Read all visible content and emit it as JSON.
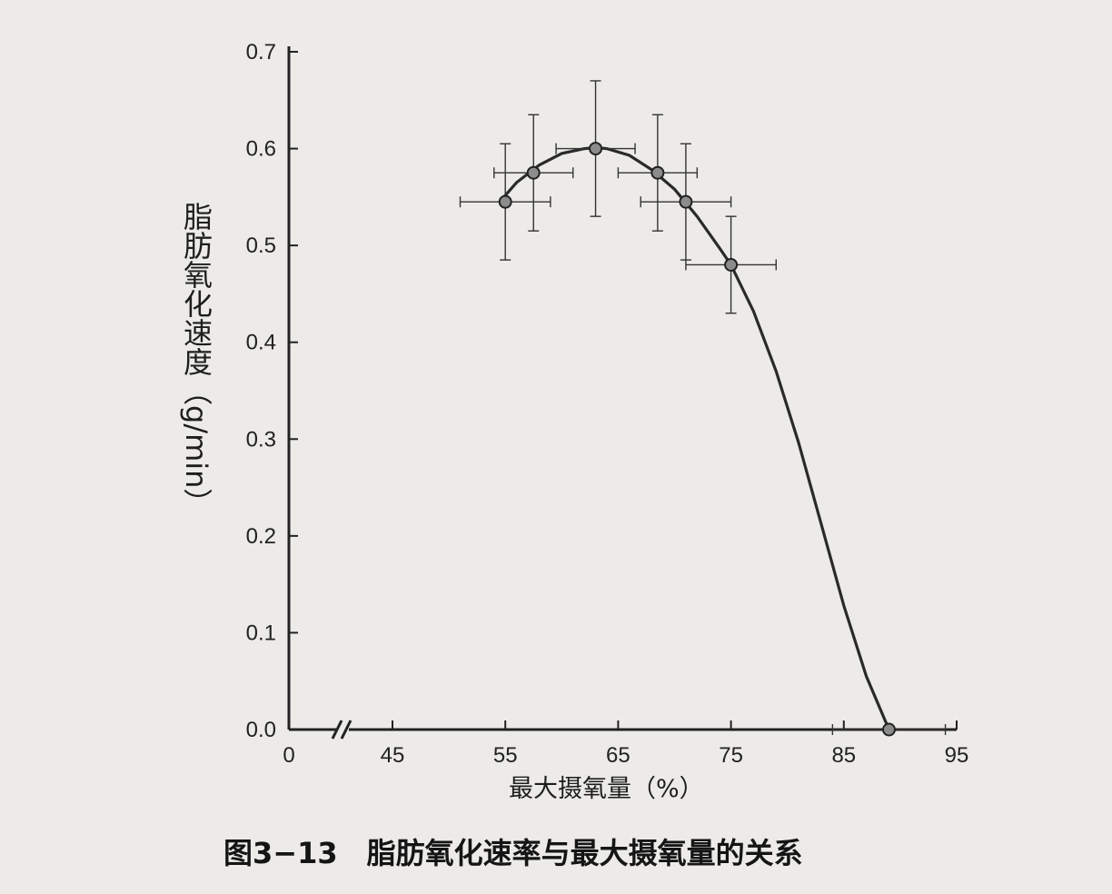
{
  "caption": "图3−13　脂肪氧化速率与最大摄氧量的关系",
  "chart_data": {
    "type": "scatter",
    "title": "",
    "xlabel": "最大摄氧量（%）",
    "ylabel": "脂肪氧化速度（g/min）",
    "x_ticks": [
      "0",
      "45",
      "55",
      "65",
      "75",
      "85",
      "95"
    ],
    "y_ticks": [
      "0.0",
      "0.1",
      "0.2",
      "0.3",
      "0.4",
      "0.5",
      "0.6",
      "0.7"
    ],
    "xlim": [
      45,
      95
    ],
    "ylim": [
      0,
      0.7
    ],
    "x_axis_break": true,
    "grid": false,
    "points": [
      {
        "x": 55,
        "y": 0.545,
        "xerr": 4,
        "yerr": 0.06
      },
      {
        "x": 57.5,
        "y": 0.575,
        "xerr": 3.5,
        "yerr": 0.06
      },
      {
        "x": 63,
        "y": 0.6,
        "xerr": 3.5,
        "yerr": 0.07
      },
      {
        "x": 68.5,
        "y": 0.575,
        "xerr": 3.5,
        "yerr": 0.06
      },
      {
        "x": 71,
        "y": 0.545,
        "xerr": 4,
        "yerr": 0.06
      },
      {
        "x": 75,
        "y": 0.48,
        "xerr": 4,
        "yerr": 0.05
      },
      {
        "x": 89,
        "y": 0.0,
        "xerr": 5,
        "yerr": 0
      }
    ],
    "curve": {
      "x": [
        54.5,
        56,
        58,
        60,
        62,
        63,
        64,
        66,
        68,
        70,
        72,
        74,
        75,
        77,
        79,
        81,
        83,
        85,
        87,
        89
      ],
      "y": [
        0.545,
        0.565,
        0.583,
        0.595,
        0.6,
        0.601,
        0.6,
        0.593,
        0.578,
        0.558,
        0.53,
        0.497,
        0.48,
        0.432,
        0.37,
        0.296,
        0.212,
        0.128,
        0.055,
        0.0
      ]
    }
  }
}
